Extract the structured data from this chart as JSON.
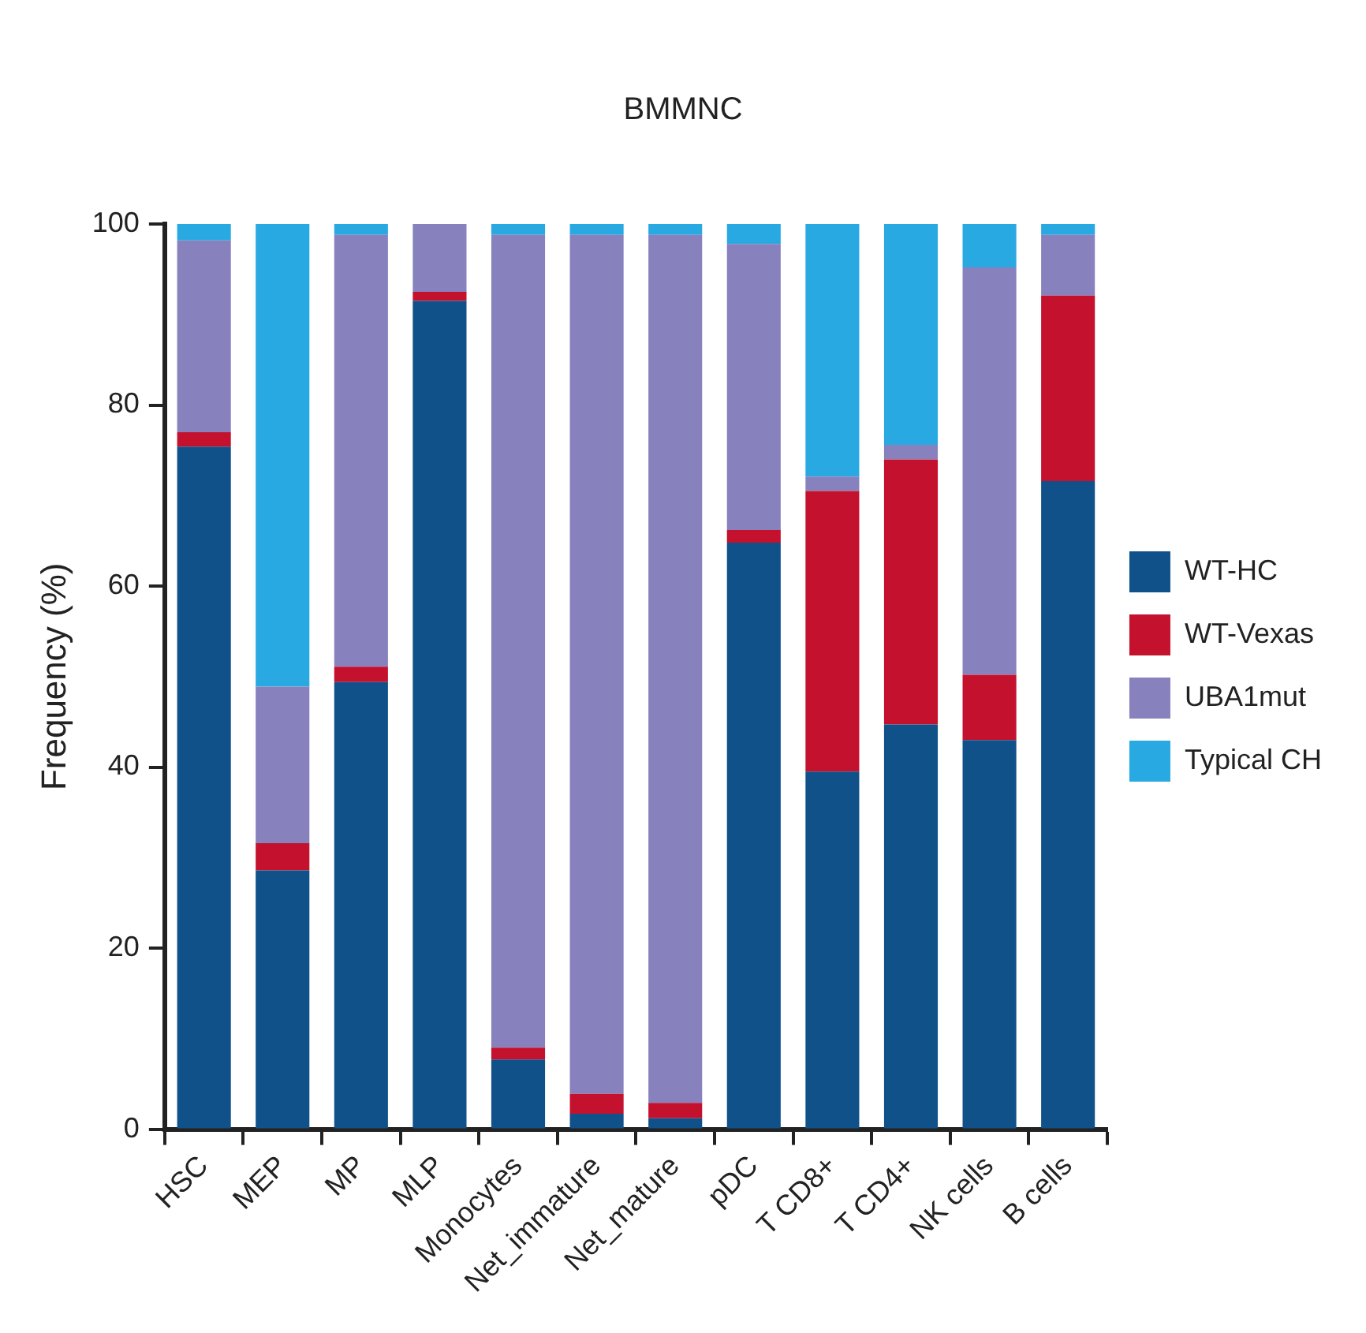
{
  "chart_data": {
    "type": "bar",
    "title": "BMMNC",
    "ylabel": "Frequency (%)",
    "stacked": true,
    "categories": [
      "HSC",
      "MEP",
      "MP",
      "MLP",
      "Monocytes",
      "Net_immature",
      "Net_mature",
      "pDC",
      "T CD8+",
      "T CD4+",
      "NK cells",
      "B cells"
    ],
    "series": [
      {
        "name": "WT-HC",
        "color": "#10518a",
        "values": [
          75.4,
          28.6,
          49.4,
          91.5,
          7.7,
          1.7,
          1.2,
          64.8,
          39.5,
          44.7,
          43.0,
          71.6
        ]
      },
      {
        "name": "WT-Vexas",
        "color": "#c3112e",
        "values": [
          1.6,
          3.0,
          1.7,
          1.0,
          1.3,
          2.2,
          1.7,
          1.4,
          31.0,
          29.3,
          7.2,
          20.5
        ]
      },
      {
        "name": "UBA1mut",
        "color": "#8781bd",
        "values": [
          21.2,
          17.3,
          47.7,
          7.5,
          89.8,
          94.9,
          95.9,
          31.6,
          1.6,
          1.6,
          45.0,
          6.7
        ]
      },
      {
        "name": "Typical CH",
        "color": "#29a9e1",
        "values": [
          1.8,
          51.1,
          1.2,
          0,
          1.2,
          1.2,
          1.2,
          2.2,
          27.9,
          24.4,
          4.8,
          1.2
        ]
      }
    ],
    "ylim": [
      0,
      100
    ],
    "yticks": [
      0,
      20,
      40,
      60,
      80,
      100
    ],
    "grid": false,
    "legend": "right"
  }
}
